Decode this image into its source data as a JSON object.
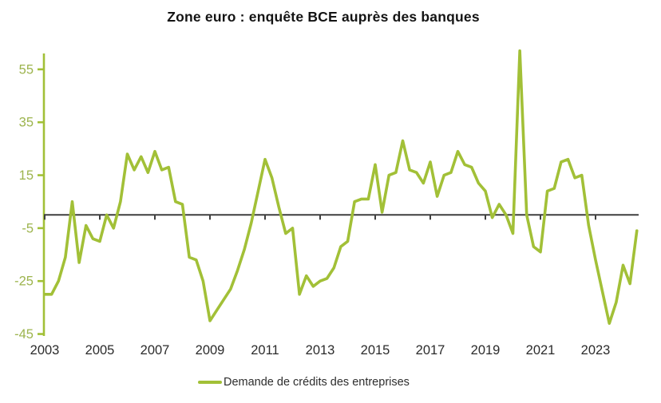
{
  "title": "Zone euro : enquête BCE auprès des banques",
  "legend": {
    "label": "Demande de crédits des entreprises"
  },
  "colors": {
    "line": "#a2c037",
    "y_axis": "#a2c037",
    "y_tick_label": "#9db44e",
    "x_tick_label": "#2b2b2b",
    "zero_line": "#3f3f3f",
    "title": "#141414",
    "background": "#ffffff"
  },
  "chart_data": {
    "type": "line",
    "title": "Zone euro : enquête BCE auprès des banques",
    "frequency": "quarterly",
    "x_start": "2003Q1",
    "x_end": "2024Q3",
    "series": [
      {
        "name": "Demande de crédits des entreprises",
        "values": [
          -30,
          -30,
          -25,
          -16,
          5,
          -18,
          -4,
          -9,
          -10,
          0,
          -5,
          5,
          23,
          17,
          22,
          16,
          24,
          17,
          18,
          5,
          4,
          -16,
          -17,
          -25,
          -40,
          -36,
          -32,
          -28,
          -21,
          -13,
          -3,
          9,
          21,
          14,
          3,
          -7,
          -5,
          -30,
          -23,
          -27,
          -25,
          -24,
          -20,
          -12,
          -10,
          5,
          6,
          6,
          19,
          1,
          15,
          16,
          28,
          17,
          16,
          12,
          20,
          7,
          15,
          16,
          24,
          19,
          18,
          12,
          9,
          -1,
          4,
          0,
          -7,
          62,
          0,
          -12,
          -14,
          9,
          10,
          20,
          21,
          14,
          15,
          -4,
          -17,
          -29,
          -41,
          -33,
          -19,
          -26,
          -6
        ]
      }
    ],
    "y_ticks": [
      55,
      35,
      15,
      -5,
      -25,
      -45
    ],
    "x_tick_labels": [
      "2003",
      "2005",
      "2007",
      "2009",
      "2011",
      "2013",
      "2015",
      "2017",
      "2019",
      "2021",
      "2023"
    ],
    "ylim": [
      -45,
      62
    ],
    "zero_line": true,
    "grid": false,
    "legend_position": "bottom"
  }
}
